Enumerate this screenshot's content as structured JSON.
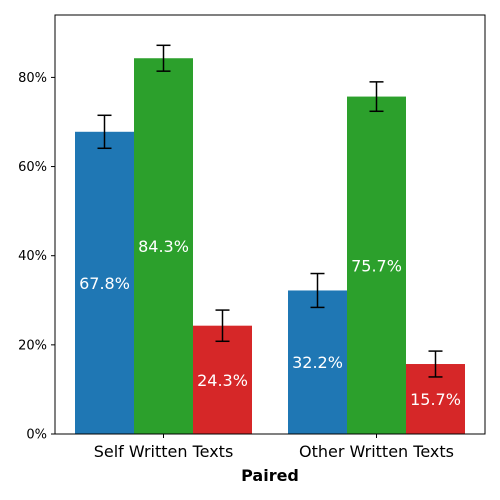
{
  "chart_data": {
    "type": "bar",
    "xlabel": "Paired",
    "ylabel": "",
    "ylim": [
      0,
      94
    ],
    "yticks": [
      0,
      20,
      40,
      60,
      80
    ],
    "ytick_labels": [
      "0%",
      "20%",
      "40%",
      "60%",
      "80%"
    ],
    "categories": [
      "Self Written Texts",
      "Other Written Texts"
    ],
    "grid": false,
    "legend": "none",
    "series": [
      {
        "color": "#1f77b4",
        "values": [
          67.8,
          32.2
        ],
        "errors": [
          3.7,
          3.8
        ],
        "labels": [
          "67.8%",
          "32.2%"
        ]
      },
      {
        "color": "#2ca02c",
        "values": [
          84.3,
          75.7
        ],
        "errors": [
          2.9,
          3.3
        ],
        "labels": [
          "84.3%",
          "75.7%"
        ]
      },
      {
        "color": "#d62728",
        "values": [
          24.3,
          15.7
        ],
        "errors": [
          3.5,
          2.9
        ],
        "labels": [
          "24.3%",
          "15.7%"
        ]
      }
    ]
  }
}
